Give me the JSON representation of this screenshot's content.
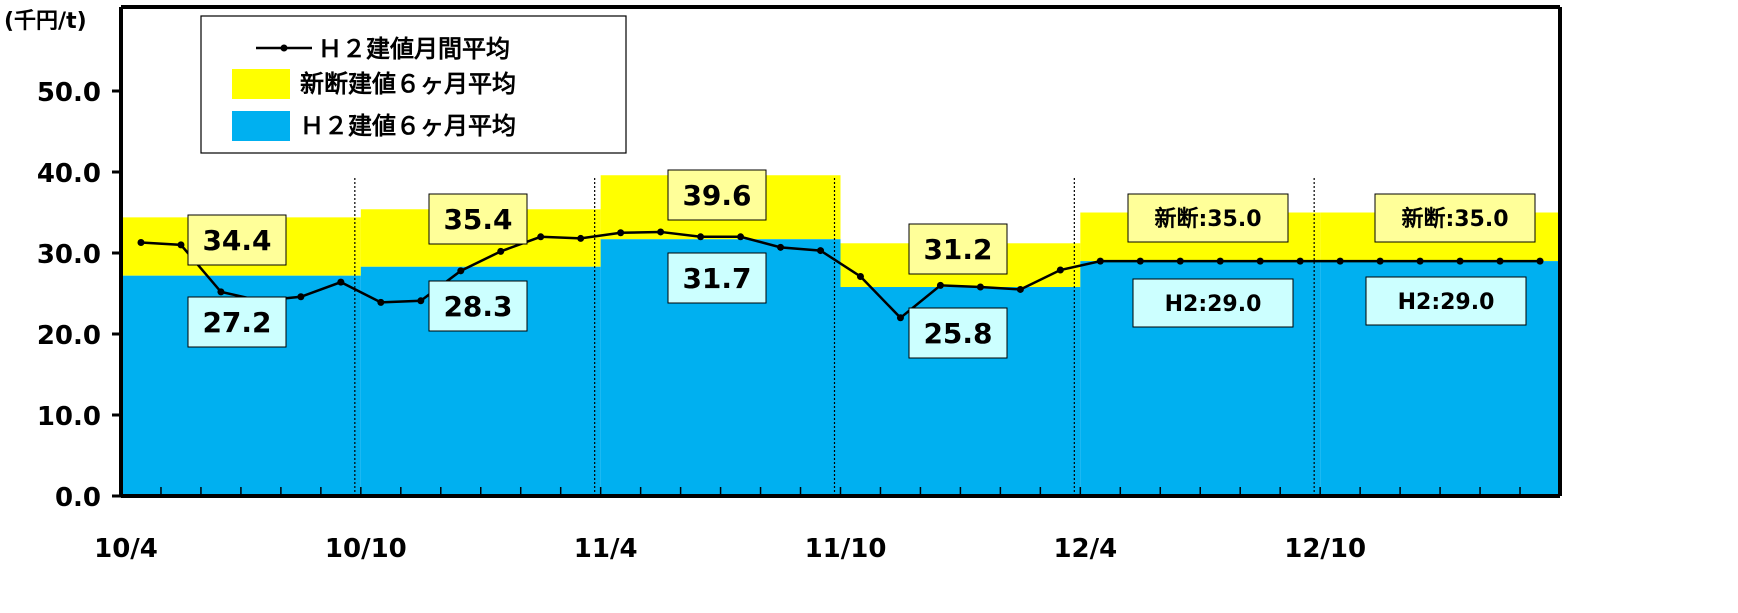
{
  "chart_data": {
    "type": "bar+line",
    "y_unit": "(千円/t)",
    "ylim": [
      0,
      50
    ],
    "y_ticks": [
      "0.0",
      "10.0",
      "20.0",
      "30.0",
      "40.0",
      "50.0"
    ],
    "x_tick_labels": [
      "10/4",
      "10/10",
      "11/4",
      "11/10",
      "12/4",
      "12/10"
    ],
    "grid": false,
    "legend_position": "top-left",
    "colors": {
      "shinDan6": "#FFFF00",
      "h2_6": "#00B0F0",
      "line": "#000000",
      "label_yellow": "#FFFF99",
      "label_cyan": "#CCFFFF"
    },
    "legend": [
      {
        "text": "Ｈ２建値月間平均",
        "swatch": "line"
      },
      {
        "text": "新断建値６ヶ月平均",
        "swatch": "#FFFF00"
      },
      {
        "text": "Ｈ２建値６ヶ月平均",
        "swatch": "#00B0F0"
      }
    ],
    "periods": [
      {
        "start": "10/4",
        "shinDan6": 34.4,
        "h2_6": 27.2,
        "shinDan_label": "34.4",
        "h2_label": "27.2"
      },
      {
        "start": "10/10",
        "shinDan6": 35.4,
        "h2_6": 28.3,
        "shinDan_label": "35.4",
        "h2_label": "28.3"
      },
      {
        "start": "11/4",
        "shinDan6": 39.6,
        "h2_6": 31.7,
        "shinDan_label": "39.6",
        "h2_label": "31.7"
      },
      {
        "start": "11/10",
        "shinDan6": 31.2,
        "h2_6": 25.8,
        "shinDan_label": "31.2",
        "h2_label": "25.8"
      },
      {
        "start": "12/4",
        "shinDan6": 35.0,
        "h2_6": 29.0,
        "shinDan_label": "新断:35.0",
        "h2_label": "H2:29.0"
      },
      {
        "start": "12/10",
        "shinDan6": 35.0,
        "h2_6": 29.0,
        "shinDan_label": "新断:35.0",
        "h2_label": "H2:29.0"
      }
    ],
    "series": [
      {
        "name": "Ｈ２建値月間平均",
        "values": [
          31.3,
          31.0,
          25.2,
          24.1,
          24.6,
          26.4,
          23.9,
          24.1,
          27.8,
          30.2,
          32.0,
          31.8,
          32.5,
          32.6,
          32.0,
          32.0,
          30.7,
          30.3,
          27.1,
          22.0,
          26.0,
          25.8,
          25.5,
          27.9,
          29.0,
          29.0,
          29.0,
          29.0,
          29.0,
          29.0,
          29.0,
          29.0,
          29.0,
          29.0,
          29.0,
          29.0
        ]
      }
    ]
  }
}
